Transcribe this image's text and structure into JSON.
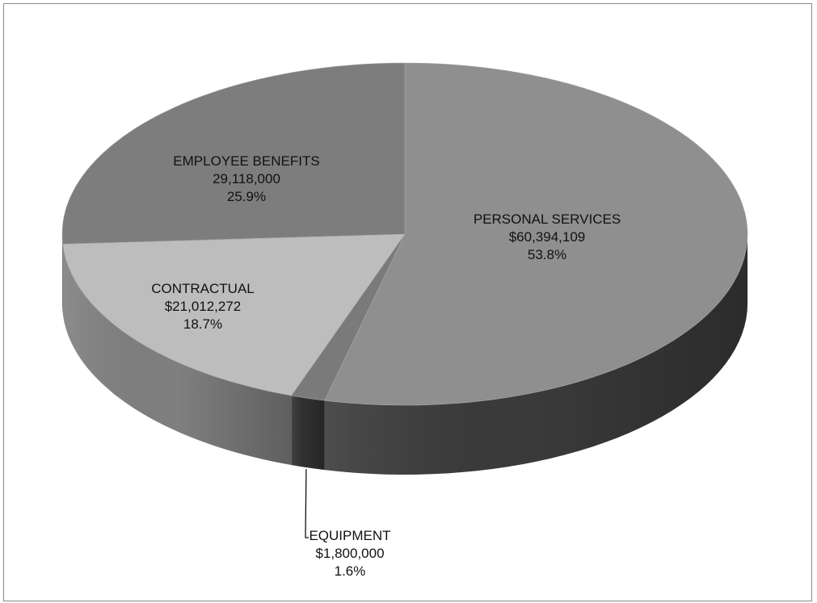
{
  "chart_data": {
    "type": "pie",
    "title": "",
    "style": "3d",
    "slices": [
      {
        "label": "PERSONAL SERVICES",
        "value_text": "$60,394,109",
        "value": 60394109,
        "percent_text": "53.8%",
        "percent": 53.8,
        "color": "#8f8f8f",
        "side_color": "#3a3a3a"
      },
      {
        "label": "EQUIPMENT",
        "value_text": "$1,800,000",
        "value": 1800000,
        "percent_text": "1.6%",
        "percent": 1.6,
        "color": "#7a7a7a",
        "side_color": "#303030"
      },
      {
        "label": "CONTRACTUAL",
        "value_text": "$21,012,272",
        "value": 21012272,
        "percent_text": "18.7%",
        "percent": 18.7,
        "color": "#bdbdbd",
        "side_color": "#7f7f7f"
      },
      {
        "label": "EMPLOYEE BENEFITS",
        "value_text": "29,118,000",
        "value": 29118000,
        "percent_text": "25.9%",
        "percent": 25.9,
        "color": "#7d7d7d",
        "side_color": "#6a6a6a"
      }
    ]
  }
}
